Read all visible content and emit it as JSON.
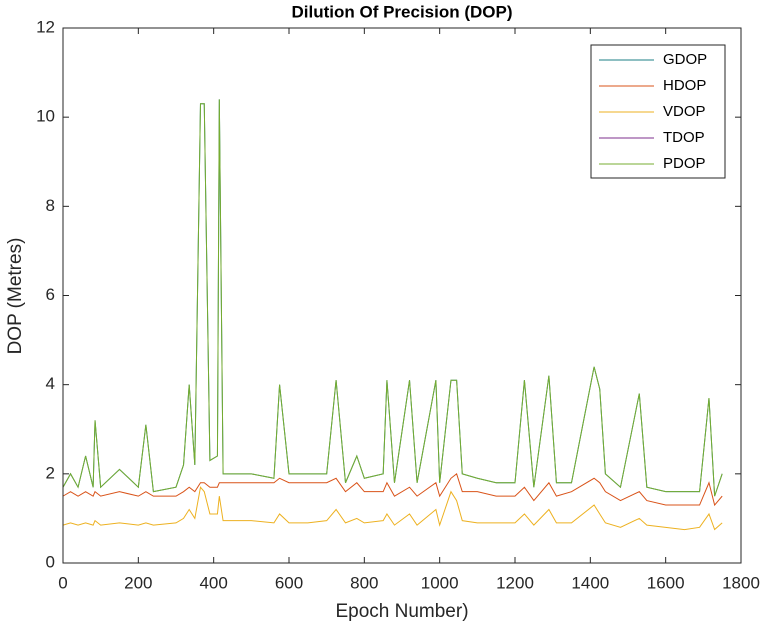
{
  "chart_data": {
    "type": "line",
    "title": "Dilution Of Precision (DOP)",
    "x_label": "Epoch Number)",
    "y_label": "DOP (Metres)",
    "x": [
      0,
      20,
      40,
      60,
      80,
      85,
      100,
      150,
      200,
      220,
      240,
      300,
      320,
      335,
      350,
      365,
      375,
      390,
      410,
      415,
      425,
      500,
      560,
      575,
      600,
      650,
      700,
      725,
      750,
      780,
      800,
      850,
      860,
      880,
      920,
      940,
      990,
      1000,
      1030,
      1045,
      1060,
      1100,
      1150,
      1200,
      1225,
      1250,
      1290,
      1310,
      1350,
      1410,
      1425,
      1440,
      1480,
      1530,
      1550,
      1600,
      1650,
      1690,
      1715,
      1730,
      1750
    ],
    "series": [
      {
        "name": "GDOP",
        "color": "#1b7f86",
        "values": [
          1.7,
          2.0,
          1.7,
          2.4,
          1.7,
          3.2,
          1.7,
          2.1,
          1.7,
          3.1,
          1.6,
          1.7,
          2.2,
          4.0,
          2.2,
          10.3,
          10.3,
          2.3,
          2.4,
          10.4,
          2.0,
          2.0,
          1.9,
          4.0,
          2.0,
          2.0,
          2.0,
          4.1,
          1.8,
          2.4,
          1.9,
          2.0,
          4.1,
          1.8,
          4.1,
          1.8,
          4.1,
          1.8,
          4.1,
          4.1,
          2.0,
          1.9,
          1.8,
          1.8,
          4.1,
          1.7,
          4.2,
          1.8,
          1.8,
          4.4,
          3.9,
          2.0,
          1.7,
          3.8,
          1.7,
          1.6,
          1.6,
          1.6,
          3.7,
          1.5,
          2.0
        ]
      },
      {
        "name": "HDOP",
        "color": "#D95319",
        "values": [
          1.5,
          1.6,
          1.5,
          1.6,
          1.5,
          1.6,
          1.5,
          1.6,
          1.5,
          1.6,
          1.5,
          1.5,
          1.6,
          1.7,
          1.6,
          1.8,
          1.8,
          1.7,
          1.7,
          1.8,
          1.8,
          1.8,
          1.8,
          1.9,
          1.8,
          1.8,
          1.8,
          1.9,
          1.6,
          1.8,
          1.6,
          1.6,
          1.8,
          1.5,
          1.7,
          1.5,
          1.8,
          1.5,
          1.9,
          2.0,
          1.6,
          1.6,
          1.5,
          1.5,
          1.7,
          1.4,
          1.8,
          1.5,
          1.6,
          1.9,
          1.8,
          1.6,
          1.4,
          1.6,
          1.4,
          1.3,
          1.3,
          1.3,
          1.8,
          1.3,
          1.5
        ]
      },
      {
        "name": "VDOP",
        "color": "#EDB120",
        "values": [
          0.85,
          0.9,
          0.85,
          0.9,
          0.85,
          0.95,
          0.85,
          0.9,
          0.85,
          0.9,
          0.85,
          0.9,
          1.0,
          1.2,
          1.0,
          1.7,
          1.6,
          1.1,
          1.1,
          1.5,
          0.95,
          0.95,
          0.9,
          1.1,
          0.9,
          0.9,
          0.95,
          1.2,
          0.9,
          1.0,
          0.9,
          0.95,
          1.1,
          0.85,
          1.1,
          0.85,
          1.2,
          0.85,
          1.6,
          1.4,
          0.95,
          0.9,
          0.9,
          0.9,
          1.1,
          0.85,
          1.2,
          0.9,
          0.9,
          1.3,
          1.1,
          0.9,
          0.8,
          1.0,
          0.85,
          0.8,
          0.75,
          0.8,
          1.1,
          0.75,
          0.9
        ]
      },
      {
        "name": "TDOP",
        "color": "#7E2F8E",
        "values": [
          0,
          0,
          0,
          0,
          0,
          0,
          0,
          0,
          0,
          0,
          0,
          0,
          0,
          0,
          0,
          0,
          0,
          0,
          0,
          0,
          0,
          0,
          0,
          0,
          0,
          0,
          0,
          0,
          0,
          0,
          0,
          0,
          0,
          0,
          0,
          0,
          0,
          0,
          0,
          0,
          0,
          0,
          0,
          0,
          0,
          0,
          0,
          0,
          0,
          0,
          0,
          0,
          0,
          0,
          0,
          0,
          0,
          0,
          0,
          0,
          0
        ]
      },
      {
        "name": "PDOP",
        "color": "#77AC30",
        "values": [
          1.7,
          2.0,
          1.7,
          2.4,
          1.7,
          3.2,
          1.7,
          2.1,
          1.7,
          3.1,
          1.6,
          1.7,
          2.2,
          4.0,
          2.2,
          10.3,
          10.3,
          2.3,
          2.4,
          10.4,
          2.0,
          2.0,
          1.9,
          4.0,
          2.0,
          2.0,
          2.0,
          4.1,
          1.8,
          2.4,
          1.9,
          2.0,
          4.1,
          1.8,
          4.1,
          1.8,
          4.1,
          1.8,
          4.1,
          4.1,
          2.0,
          1.9,
          1.8,
          1.8,
          4.1,
          1.7,
          4.2,
          1.8,
          1.8,
          4.4,
          3.9,
          2.0,
          1.7,
          3.8,
          1.7,
          1.6,
          1.6,
          1.6,
          3.7,
          1.5,
          2.0
        ]
      }
    ],
    "xlim": [
      0,
      1800
    ],
    "xticks": [
      0,
      200,
      400,
      600,
      800,
      1000,
      1200,
      1400,
      1600,
      1800
    ],
    "ylim": [
      0,
      12
    ],
    "yticks": [
      0,
      2,
      4,
      6,
      8,
      10,
      12
    ],
    "legend": "top-right"
  }
}
